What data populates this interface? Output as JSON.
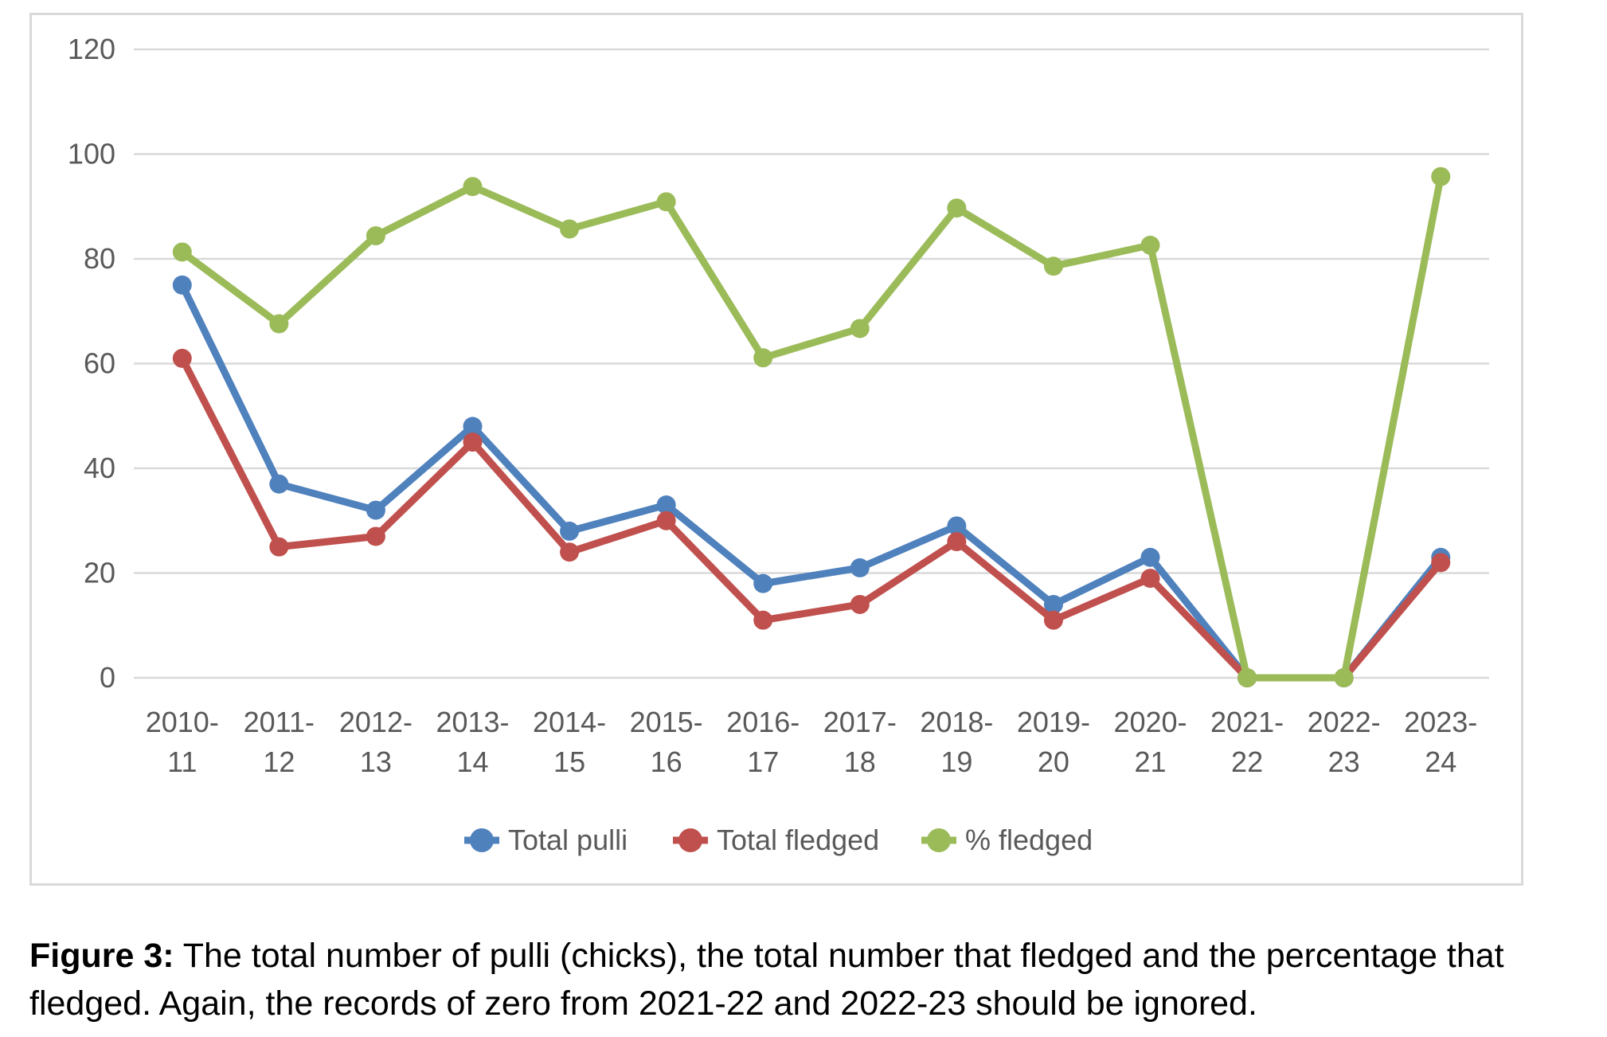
{
  "chart_data": {
    "type": "line",
    "title": "",
    "xlabel": "",
    "ylabel": "",
    "ylim": [
      0,
      120
    ],
    "yticks": [
      0,
      20,
      40,
      60,
      80,
      100,
      120
    ],
    "grid": true,
    "legend_position": "bottom",
    "categories": [
      [
        "2010-",
        "11"
      ],
      [
        "2011-",
        "12"
      ],
      [
        "2012-",
        "13"
      ],
      [
        "2013-",
        "14"
      ],
      [
        "2014-",
        "15"
      ],
      [
        "2015-",
        "16"
      ],
      [
        "2016-",
        "17"
      ],
      [
        "2017-",
        "18"
      ],
      [
        "2018-",
        "19"
      ],
      [
        "2019-",
        "20"
      ],
      [
        "2020-",
        "21"
      ],
      [
        "2021-",
        "22"
      ],
      [
        "2022-",
        "23"
      ],
      [
        "2023-",
        "24"
      ]
    ],
    "series": [
      {
        "name": "Total pulli",
        "color": "#4f81bd",
        "values": [
          75,
          37,
          32,
          48,
          28,
          33,
          18,
          21,
          29,
          14,
          23,
          0,
          0,
          23
        ]
      },
      {
        "name": "Total fledged",
        "color": "#c0504d",
        "values": [
          61,
          25,
          27,
          45,
          24,
          30,
          11,
          14,
          26,
          11,
          19,
          0,
          0,
          22
        ]
      },
      {
        "name": "% fledged",
        "color": "#9bbb59",
        "values": [
          81.3,
          67.6,
          84.4,
          93.8,
          85.7,
          90.9,
          61.1,
          66.7,
          89.7,
          78.6,
          82.6,
          0,
          0,
          95.7
        ]
      }
    ]
  },
  "caption": {
    "label": "Figure 3:",
    "text": " The total number of pulli (chicks), the total number that fledged and the percentage that fledged. Again, the records of zero from 2021-22 and 2022-23 should be ignored."
  }
}
